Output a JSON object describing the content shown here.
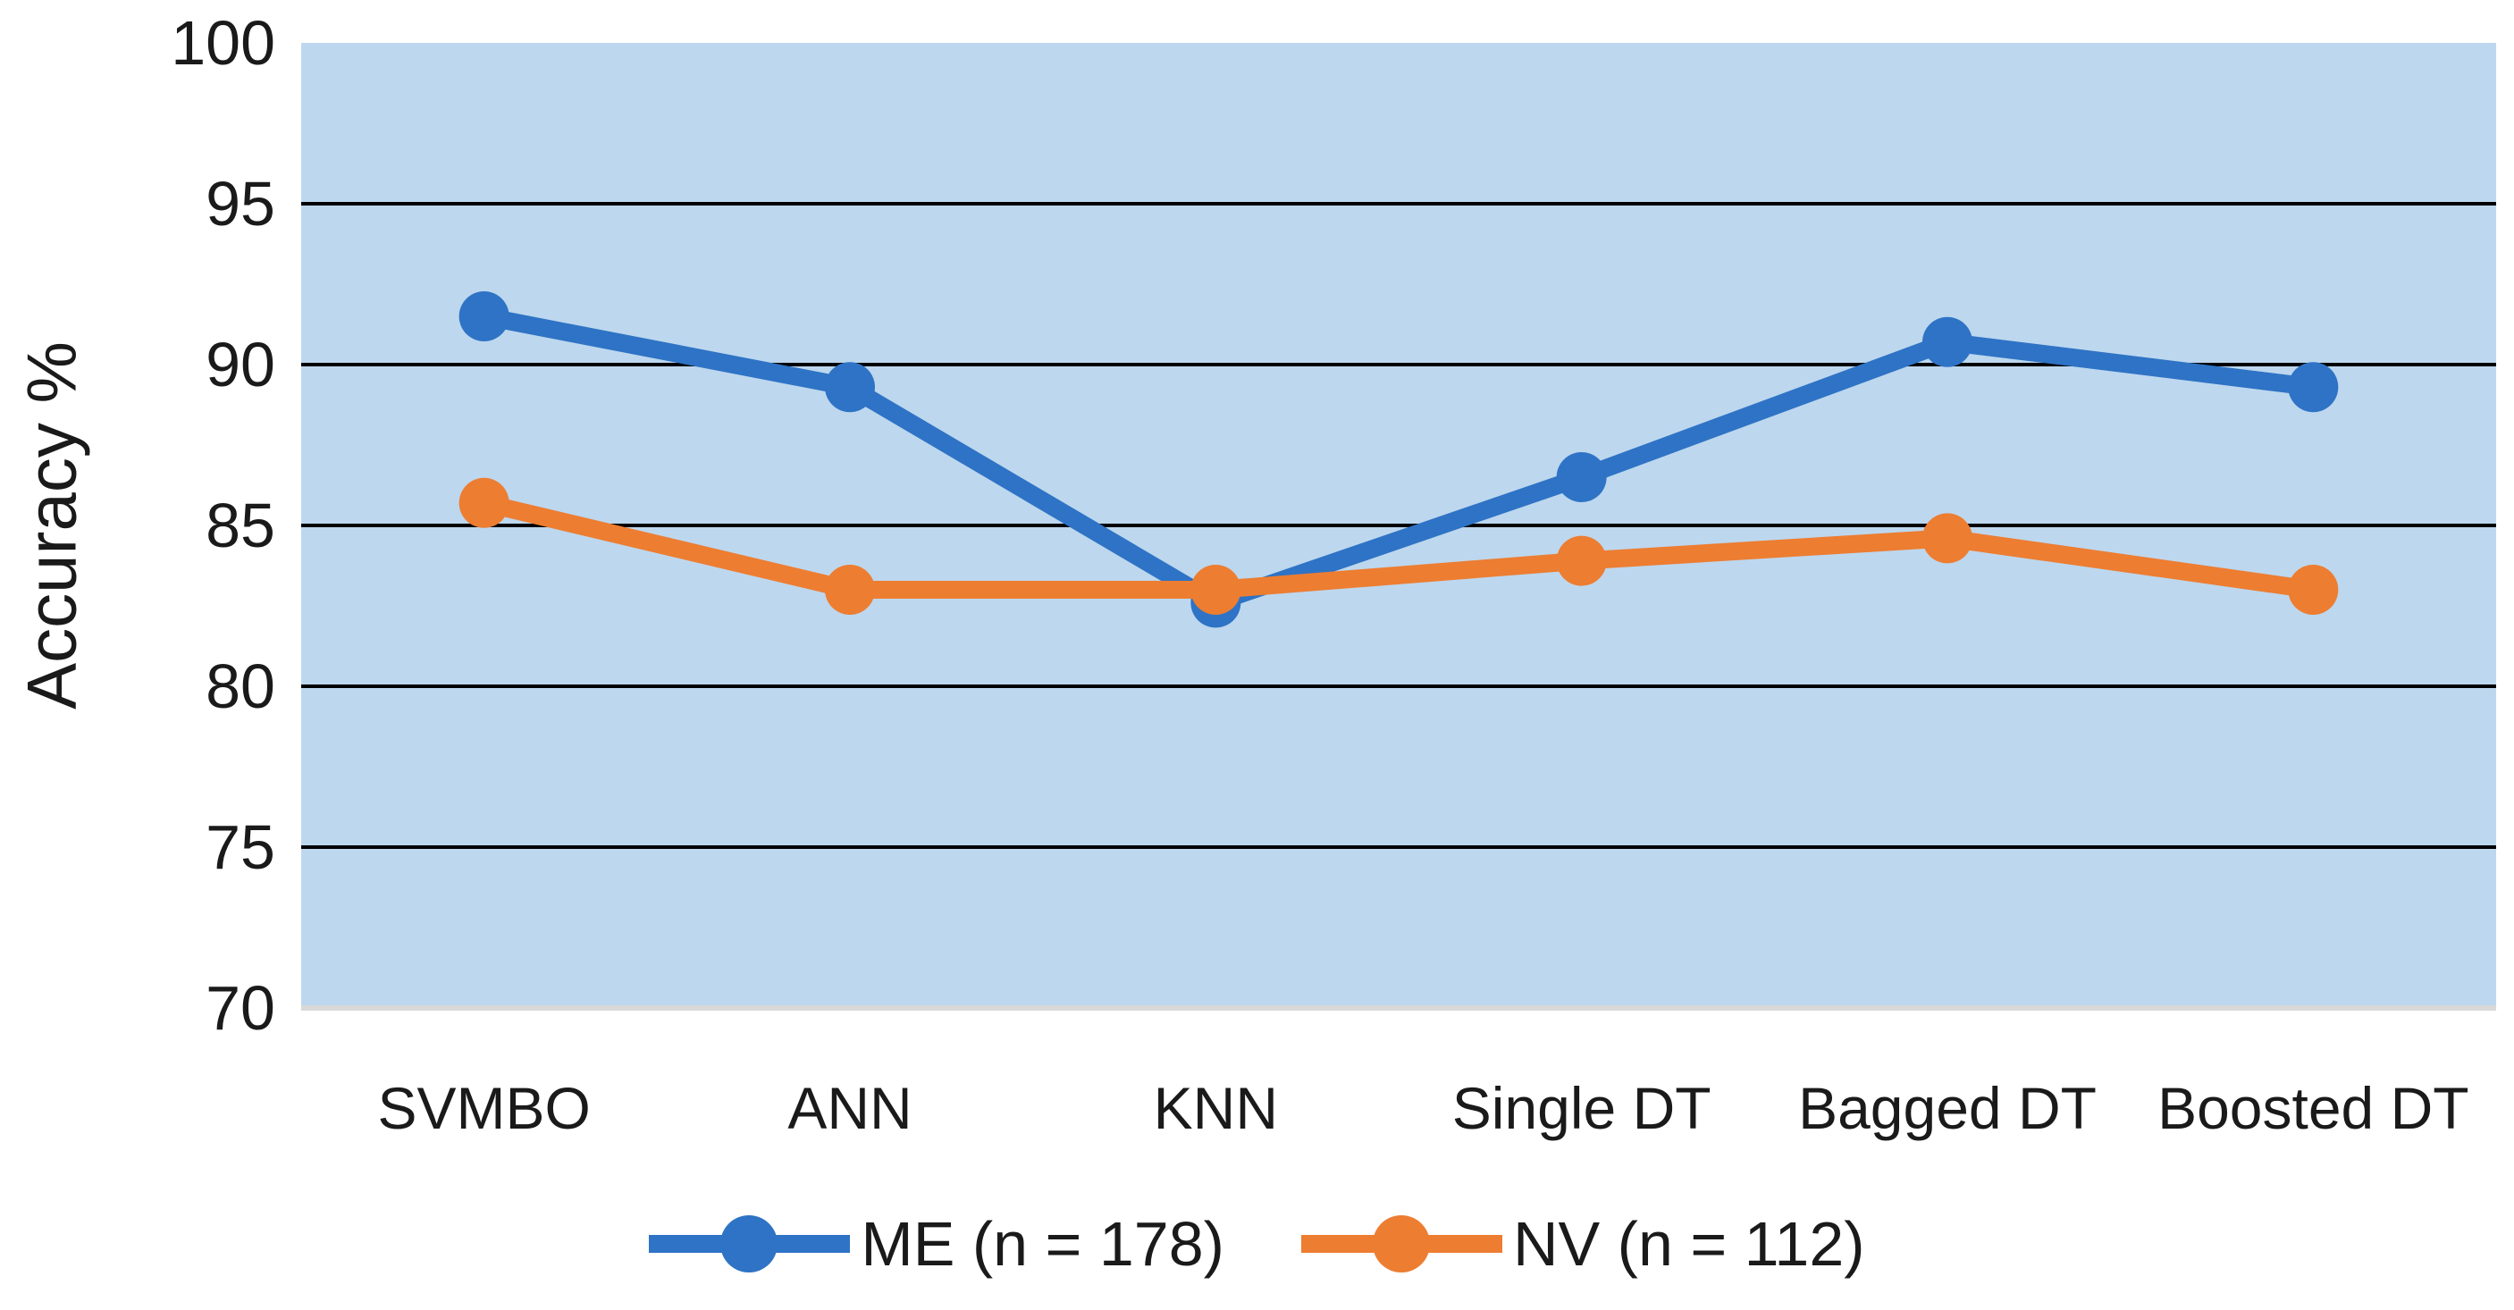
{
  "chart_data": {
    "type": "line",
    "title": "",
    "categories": [
      "SVMBO",
      "ANN",
      "KNN",
      "Single DT",
      "Bagged DT",
      "Boosted DT"
    ],
    "series": [
      {
        "name": "ME (n = 178)",
        "color": "#2E73C5",
        "values": [
          91.5,
          89.3,
          82.6,
          86.5,
          90.7,
          89.3
        ]
      },
      {
        "name": "NV (n = 112)",
        "color": "#ED7D31",
        "values": [
          85.7,
          83.0,
          83.0,
          83.9,
          84.6,
          83.0
        ]
      }
    ],
    "xlabel": "",
    "ylabel": "Accuracy %",
    "ylim": [
      70,
      100
    ],
    "yticks": [
      70,
      75,
      80,
      85,
      90,
      95,
      100
    ],
    "gridlines": [
      75,
      80,
      85,
      90,
      95
    ],
    "grid": "horizontal",
    "legend_position": "bottom-center",
    "plot_background": "#BDD7EE",
    "gridline_color": "#000000",
    "baseline_color": "#D9D9D9",
    "text_color": "#1A1A1A"
  }
}
